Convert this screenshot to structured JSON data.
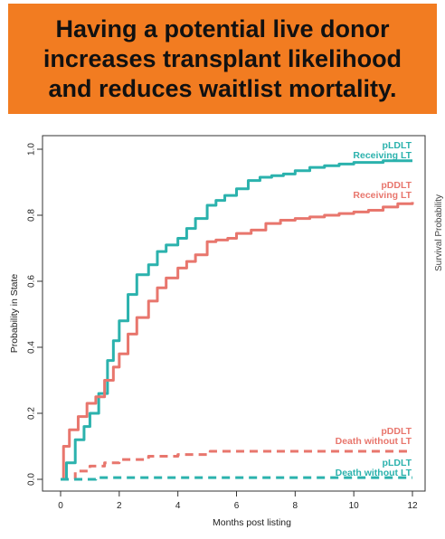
{
  "banner": {
    "title": "Having a potential live donor\nincreases transplant likelihood\nand reduces waitlist mortality."
  },
  "colors": {
    "banner_bg": "#f27c21",
    "teal": "#2bb2ad",
    "salmon": "#e8766d",
    "axis": "#333333"
  },
  "right_edge_label": "Survival Probability",
  "chart_data": {
    "type": "line",
    "xlabel": "Months post listing",
    "ylabel": "Probability in State",
    "xlim": [
      0,
      12
    ],
    "ylim": [
      0,
      1
    ],
    "xticks": [
      0,
      2,
      4,
      6,
      8,
      10,
      12
    ],
    "yticks": [
      "0.0",
      "0.2",
      "0.4",
      "0.6",
      "0.8",
      "1.0"
    ],
    "grid": false,
    "series": [
      {
        "name": "pLDLT Receiving LT",
        "label_lines": [
          "pLDLT",
          "Receiving LT"
        ],
        "color": "#2bb2ad",
        "dash": "solid",
        "x": [
          0,
          0.2,
          0.5,
          0.8,
          1.0,
          1.3,
          1.6,
          1.8,
          2.0,
          2.3,
          2.6,
          3.0,
          3.3,
          3.6,
          4.0,
          4.3,
          4.6,
          5.0,
          5.3,
          5.6,
          6.0,
          6.4,
          6.8,
          7.2,
          7.6,
          8.0,
          8.5,
          9.0,
          9.5,
          10.0,
          10.5,
          11.0,
          11.5,
          12.0
        ],
        "y": [
          0.0,
          0.05,
          0.12,
          0.16,
          0.2,
          0.26,
          0.36,
          0.42,
          0.48,
          0.56,
          0.62,
          0.65,
          0.69,
          0.71,
          0.73,
          0.76,
          0.79,
          0.83,
          0.845,
          0.86,
          0.88,
          0.905,
          0.915,
          0.92,
          0.925,
          0.935,
          0.945,
          0.95,
          0.955,
          0.96,
          0.96,
          0.965,
          0.965,
          0.965
        ]
      },
      {
        "name": "pDDLT Receiving LT",
        "label_lines": [
          "pDDLT",
          "Receiving LT"
        ],
        "color": "#e8766d",
        "dash": "solid",
        "x": [
          0,
          0.1,
          0.3,
          0.6,
          0.9,
          1.2,
          1.5,
          1.8,
          2.0,
          2.3,
          2.6,
          3.0,
          3.3,
          3.6,
          4.0,
          4.3,
          4.6,
          5.0,
          5.3,
          5.7,
          6.0,
          6.5,
          7.0,
          7.5,
          8.0,
          8.5,
          9.0,
          9.5,
          10.0,
          10.5,
          11.0,
          11.5,
          12.0
        ],
        "y": [
          0.0,
          0.1,
          0.15,
          0.19,
          0.23,
          0.25,
          0.3,
          0.34,
          0.38,
          0.44,
          0.49,
          0.54,
          0.58,
          0.61,
          0.64,
          0.66,
          0.68,
          0.72,
          0.725,
          0.73,
          0.745,
          0.755,
          0.775,
          0.785,
          0.79,
          0.795,
          0.8,
          0.805,
          0.81,
          0.815,
          0.825,
          0.835,
          0.84
        ]
      },
      {
        "name": "pDDLT Death without LT",
        "label_lines": [
          "pDDLT",
          "Death without LT"
        ],
        "color": "#e8766d",
        "dash": "dashed",
        "x": [
          0,
          0.5,
          1.0,
          1.5,
          2.0,
          3.0,
          4.0,
          5.0,
          5.1,
          6.0,
          8.0,
          10.0,
          12.0
        ],
        "y": [
          0.0,
          0.025,
          0.04,
          0.05,
          0.06,
          0.07,
          0.075,
          0.078,
          0.085,
          0.085,
          0.085,
          0.085,
          0.085
        ]
      },
      {
        "name": "pLDLT Death without LT",
        "label_lines": [
          "pLDLT",
          "Death without LT"
        ],
        "color": "#2bb2ad",
        "dash": "dashed",
        "x": [
          0,
          0.8,
          1.2,
          2.0,
          4.0,
          6.0,
          8.0,
          10.0,
          12.0
        ],
        "y": [
          0.0,
          0.0,
          0.005,
          0.005,
          0.005,
          0.005,
          0.005,
          0.005,
          0.005
        ]
      }
    ]
  }
}
